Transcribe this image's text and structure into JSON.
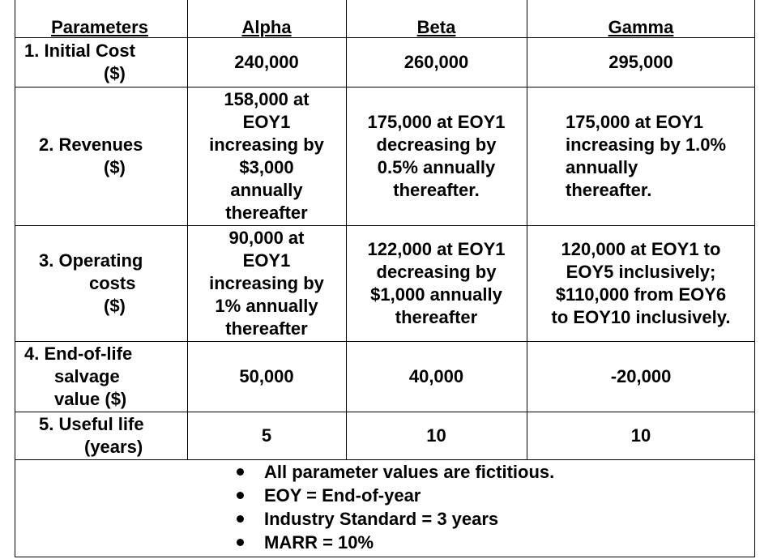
{
  "headers": [
    "Parameters",
    "Alpha",
    "Beta",
    "Gamma"
  ],
  "rows": [
    {
      "param_lines": [
        "1.  Initial Cost",
        "($)"
      ],
      "alpha": [
        "240,000"
      ],
      "beta": [
        "260,000"
      ],
      "gamma": [
        "295,000"
      ]
    },
    {
      "param_lines": [
        "2.  Revenues",
        "($)"
      ],
      "alpha": [
        "158,000 at",
        "EOY1",
        "increasing by",
        "$3,000",
        "annually",
        "thereafter"
      ],
      "beta": [
        "175,000 at EOY1",
        "decreasing by",
        "0.5% annually",
        "thereafter."
      ],
      "gamma": [
        "175,000 at EOY1",
        "increasing by 1.0%",
        "annually",
        "thereafter."
      ]
    },
    {
      "param_lines": [
        "3.  Operating",
        "costs",
        "($)"
      ],
      "alpha": [
        "90,000 at",
        "EOY1",
        "increasing by",
        "1% annually",
        "thereafter"
      ],
      "beta": [
        "122,000 at EOY1",
        "decreasing by",
        "$1,000 annually",
        "thereafter"
      ],
      "gamma": [
        "120,000 at EOY1 to",
        "EOY5 inclusively;",
        "$110,000 from EOY6",
        "to EOY10 inclusively."
      ]
    },
    {
      "param_lines": [
        "4.  End-of-life",
        "salvage",
        "value ($)"
      ],
      "alpha": [
        "50,000"
      ],
      "beta": [
        "40,000"
      ],
      "gamma": [
        "-20,000"
      ]
    },
    {
      "param_lines": [
        "5.  Useful life",
        "(years)"
      ],
      "alpha": [
        "5"
      ],
      "beta": [
        "10"
      ],
      "gamma": [
        "10"
      ]
    }
  ],
  "notes": [
    "All parameter values are fictitious.",
    "EOY = End-of-year",
    "Industry Standard = 3 years",
    "MARR = 10%"
  ]
}
